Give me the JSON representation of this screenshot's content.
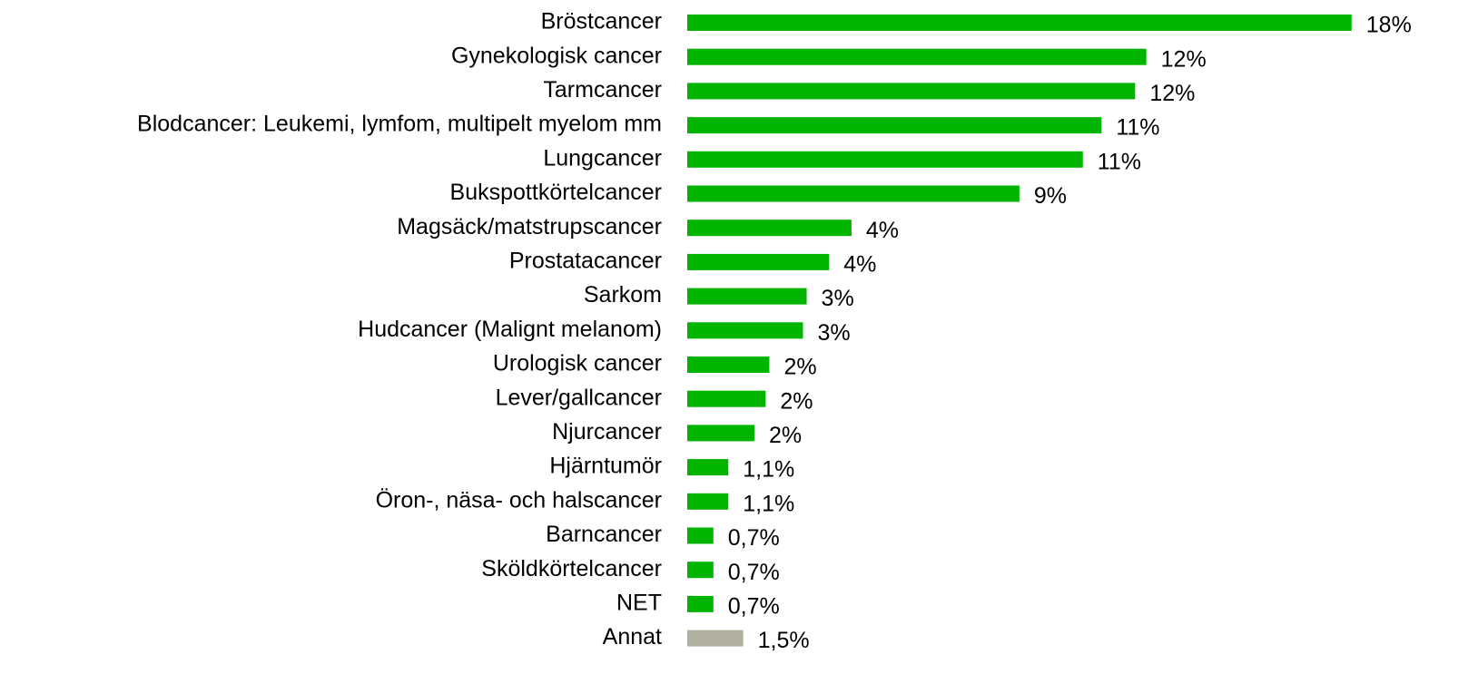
{
  "chart_data": {
    "type": "barh",
    "categories": [
      "Bröstcancer",
      "Gynekologisk cancer",
      "Tarmcancer",
      "Blodcancer: Leukemi, lymfom, multipelt myelom mm",
      "Lungcancer",
      "Bukspottkörtelcancer",
      "Magsäck/matstrupscancer",
      "Prostatacancer",
      "Sarkom",
      "Hudcancer (Malignt melanom)",
      "Urologisk cancer",
      "Lever/gallcancer",
      "Njurcancer",
      "Hjärntumör",
      "Öron-, näsa- och halscancer",
      "Barncancer",
      "Sköldkörtelcancer",
      "NET",
      "Annat"
    ],
    "values": [
      17.8,
      12.3,
      12.0,
      11.1,
      10.6,
      8.9,
      4.4,
      3.8,
      3.2,
      3.1,
      2.2,
      2.1,
      1.8,
      1.1,
      1.1,
      0.7,
      0.7,
      0.7,
      1.5
    ],
    "value_labels": [
      "18%",
      "12%",
      "12%",
      "11%",
      "11%",
      "9%",
      "4%",
      "4%",
      "3%",
      "3%",
      "2%",
      "2%",
      "2%",
      "1,1%",
      "1,1%",
      "0,7%",
      "0,7%",
      "0,7%",
      "1,5%"
    ],
    "colors": [
      "#00b400",
      "#00b400",
      "#00b400",
      "#00b400",
      "#00b400",
      "#00b400",
      "#00b400",
      "#00b400",
      "#00b400",
      "#00b400",
      "#00b400",
      "#00b400",
      "#00b400",
      "#00b400",
      "#00b400",
      "#00b400",
      "#00b400",
      "#00b400",
      "#b0b1a1"
    ],
    "xlim": [
      0,
      18
    ]
  }
}
